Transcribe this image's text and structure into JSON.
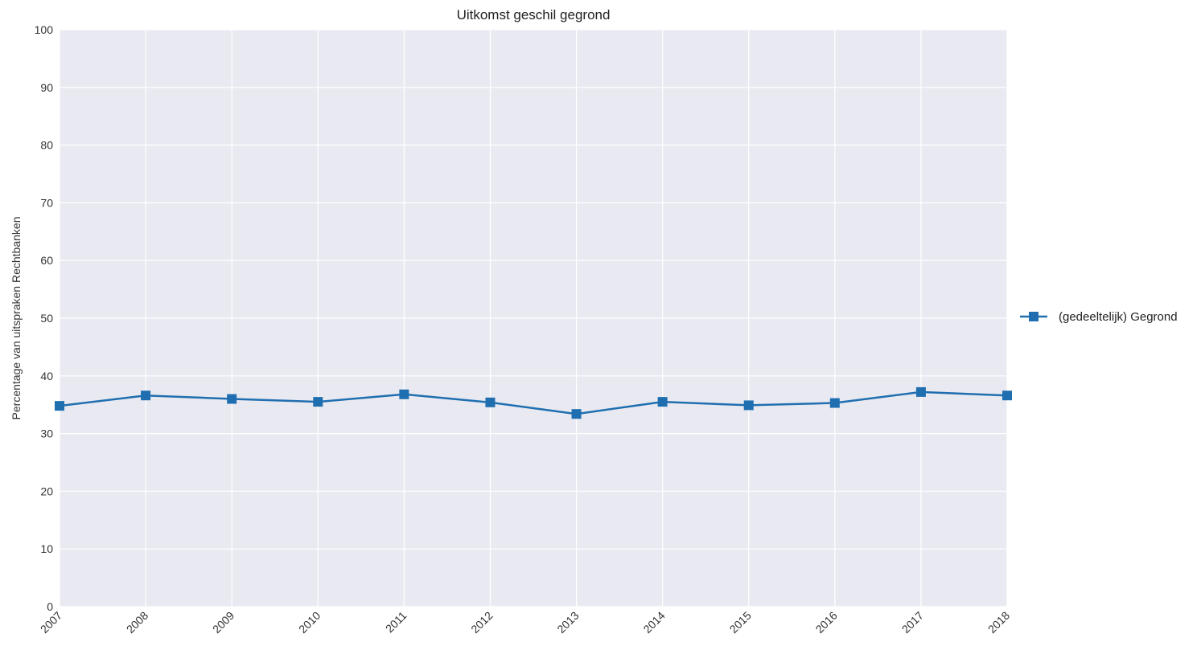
{
  "chart_data": {
    "type": "line",
    "title": "Uitkomst geschil gegrond",
    "xlabel": "",
    "ylabel": "Percentage van uitspraken Rechtbanken",
    "ylim": [
      0,
      100
    ],
    "yticks": [
      "0",
      "10",
      "20",
      "30",
      "40",
      "50",
      "60",
      "70",
      "80",
      "90",
      "100"
    ],
    "x": [
      "2007",
      "2008",
      "2009",
      "2010",
      "2011",
      "2012",
      "2013",
      "2014",
      "2015",
      "2016",
      "2017",
      "2018"
    ],
    "grid": true,
    "legend_position": "right",
    "series": [
      {
        "name": "(gedeeltelijk) Gegrond",
        "color": "#1f6fb0",
        "marker": "square",
        "values": [
          34.8,
          36.6,
          36.0,
          35.5,
          36.8,
          35.4,
          33.4,
          35.5,
          34.9,
          35.3,
          37.2,
          36.6
        ]
      }
    ]
  }
}
